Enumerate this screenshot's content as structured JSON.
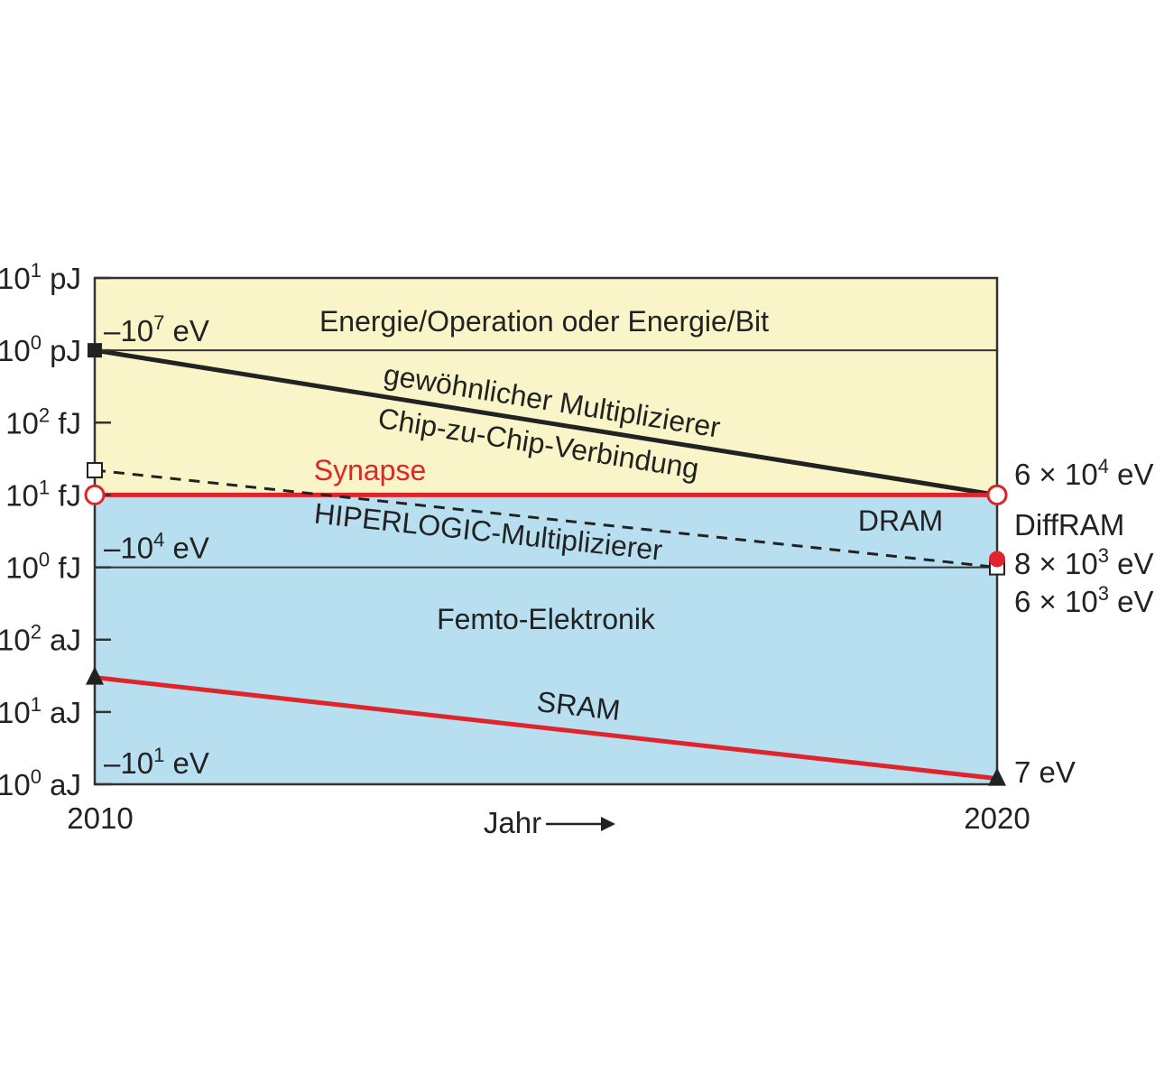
{
  "colors": {
    "upper_band": "#faf5c8",
    "lower_band": "#b7dff0",
    "black_line": "#222222",
    "red_line": "#e0242c",
    "frame": "#333333"
  },
  "chart_data": {
    "type": "line",
    "title": "",
    "xlabel": "Jahr",
    "x_ticks": [
      "2010",
      "2020"
    ],
    "xlim": [
      2010,
      2020
    ],
    "y_scale": "log",
    "y_ticks": [
      {
        "label": "10^1 pJ",
        "joules": 1e-11
      },
      {
        "label": "10^0 pJ",
        "joules": 1e-12
      },
      {
        "label": "10^2 fJ",
        "joules": 1e-13
      },
      {
        "label": "10^1 fJ",
        "joules": 1e-14
      },
      {
        "label": "10^0 fJ",
        "joules": 1e-15
      },
      {
        "label": "10^2 aJ",
        "joules": 1e-16
      },
      {
        "label": "10^1 aJ",
        "joules": 1e-17
      },
      {
        "label": "10^0 aJ",
        "joules": 1e-18
      }
    ],
    "ylim_joules": [
      1e-18,
      1e-11
    ],
    "regions": [
      {
        "label": "Energie/Operation oder Energie/Bit",
        "from_joules": 1e-12,
        "to_joules": 1e-11,
        "color": "#faf5c8"
      },
      {
        "label": "",
        "from_joules": 1e-14,
        "to_joules": 1e-12,
        "color": "#faf5c8"
      },
      {
        "label": "",
        "from_joules": 1e-15,
        "to_joules": 1e-14,
        "color": "#b7dff0"
      },
      {
        "label": "Femto-Elektronik",
        "from_joules": 1e-18,
        "to_joules": 1e-15,
        "color": "#b7dff0"
      }
    ],
    "ev_markers_left": [
      {
        "text": "10^7 eV",
        "joules": 1e-12
      },
      {
        "text": "10^4 eV",
        "joules": 1e-15
      },
      {
        "text": "10^1 eV",
        "joules": 1e-18
      }
    ],
    "series": [
      {
        "name": "gewöhnlicher Multiplizierer",
        "name2": "Chip-zu-Chip-Verbindung",
        "style": "solid",
        "color": "#222222",
        "marker": "filled-square",
        "end_marker": "open-circle",
        "x": [
          2010,
          2020
        ],
        "y_joules": [
          1e-12,
          1e-14
        ],
        "end_label": "6 × 10^4 eV"
      },
      {
        "name": "Synapse",
        "style": "solid",
        "color": "#e0242c",
        "marker": "open-circle",
        "end_marker": "open-circle",
        "x": [
          2010,
          2020
        ],
        "y_joules": [
          1e-14,
          1e-14
        ]
      },
      {
        "name": "HIPERLOGIC-Multiplizierer",
        "style": "dashed",
        "color": "#222222",
        "marker": "open-square",
        "end_marker": "open-square",
        "x": [
          2010,
          2020
        ],
        "y_joules": [
          2.2e-14,
          1e-15
        ],
        "end_label": "6 × 10^3 eV"
      },
      {
        "name": "SRAM",
        "style": "solid",
        "color": "#e0242c",
        "marker": "filled-triangle",
        "end_marker": "filled-triangle",
        "x": [
          2010,
          2020
        ],
        "y_joules": [
          3e-17,
          1.2e-18
        ],
        "end_label": "7 eV"
      }
    ],
    "points": [
      {
        "name": "DRAM",
        "x": 2020,
        "y_joules": 1e-14
      },
      {
        "name": "DiffRAM",
        "x": 2020,
        "y_joules": 1.3e-15,
        "color": "#e0242c",
        "label": "8 × 10^3 eV"
      }
    ]
  }
}
